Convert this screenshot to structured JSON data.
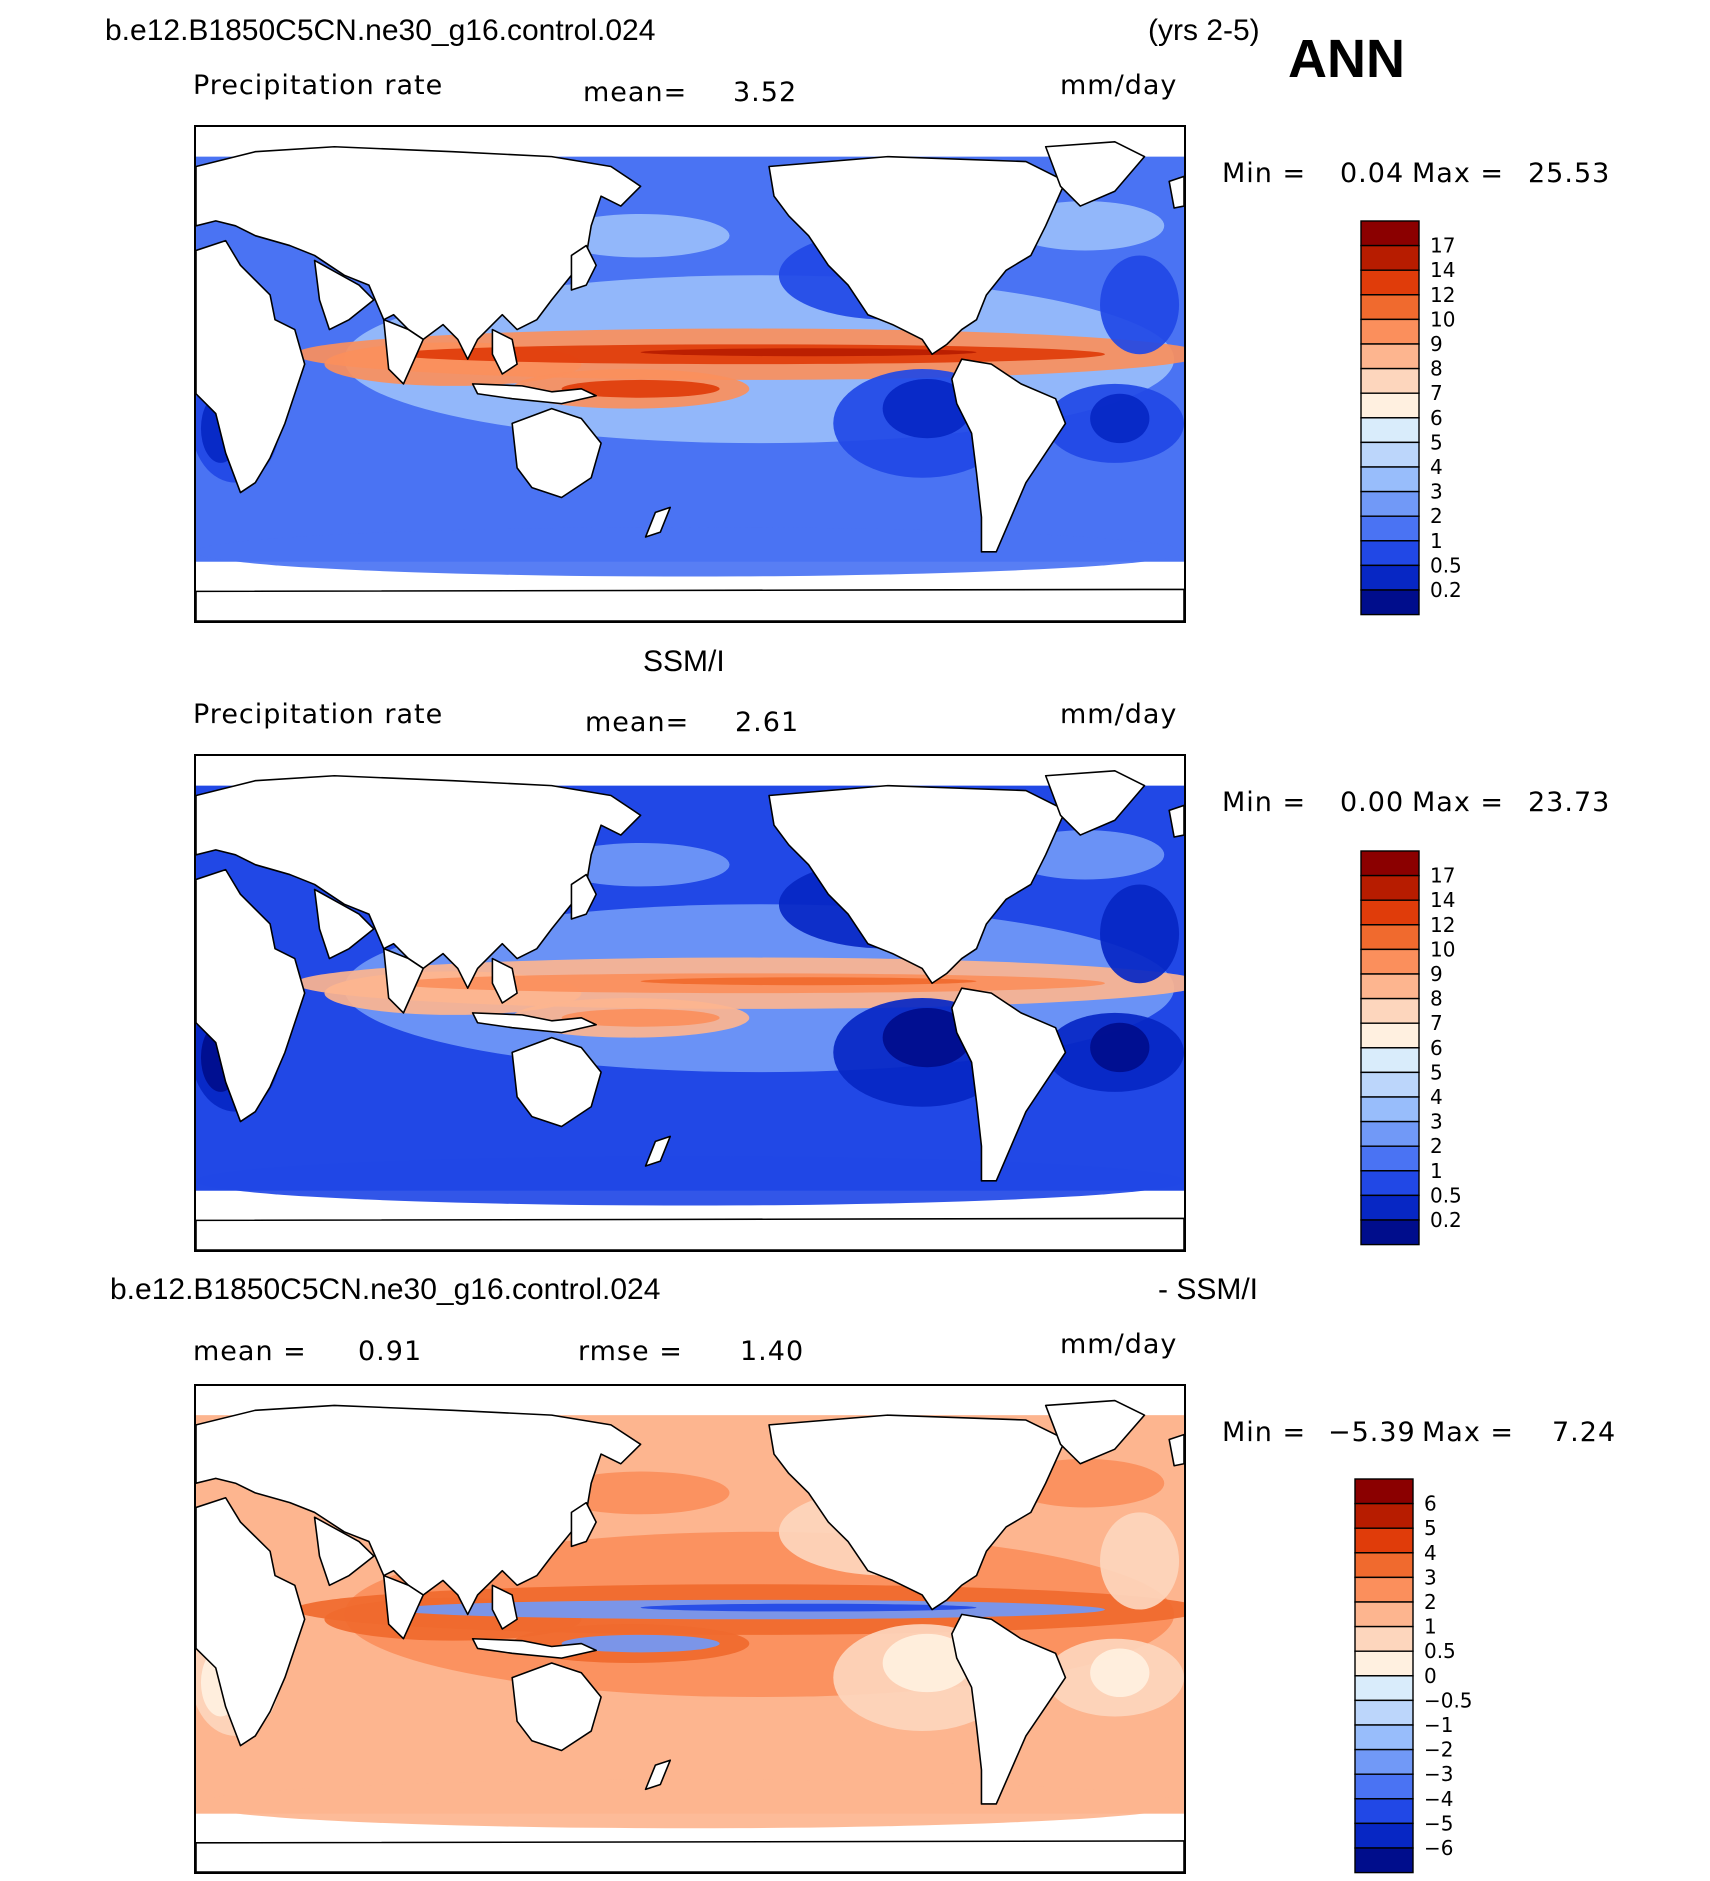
{
  "header": {
    "case_name": "b.e12.B1850C5CN.ne30_g16.control.024",
    "years": "(yrs 2-5)",
    "season": "ANN"
  },
  "panels": [
    {
      "id": "model",
      "subtitle": "",
      "variable": "Precipitation rate",
      "mean_label": "mean=",
      "mean_value": "3.52",
      "units": "mm/day",
      "min_label": "Min =",
      "min_value": "0.04",
      "max_label": "Max =",
      "max_value": "25.53",
      "colorbar": {
        "labels": [
          "17",
          "14",
          "12",
          "10",
          "9",
          "8",
          "7",
          "6",
          "5",
          "4",
          "3",
          "2",
          "1",
          "0.5",
          "0.2"
        ],
        "colors": [
          "#8b0000",
          "#b71c00",
          "#e03c0a",
          "#f06a2e",
          "#fb8f5c",
          "#fdb58f",
          "#fdd6bd",
          "#fff0e0",
          "#d9ecfb",
          "#bcd6fb",
          "#98bdfb",
          "#7199f7",
          "#4a73f3",
          "#2148e6",
          "#0727c4",
          "#000d8c"
        ]
      },
      "field_colors": {
        "ocean": "#4a73f3",
        "subtropic": "#2148e6",
        "desert": "#0727c4",
        "wet": "#98bdfb",
        "itcz": "#fb8f5c",
        "core": "#e03c0a",
        "peak": "#b71c00"
      }
    },
    {
      "id": "obs",
      "subtitle": "SSM/I",
      "variable": "Precipitation rate",
      "mean_label": "mean=",
      "mean_value": "2.61",
      "units": "mm/day",
      "min_label": "Min =",
      "min_value": "0.00",
      "max_label": "Max =",
      "max_value": "23.73",
      "colorbar": {
        "labels": [
          "17",
          "14",
          "12",
          "10",
          "9",
          "8",
          "7",
          "6",
          "5",
          "4",
          "3",
          "2",
          "1",
          "0.5",
          "0.2"
        ],
        "colors": [
          "#8b0000",
          "#b71c00",
          "#e03c0a",
          "#f06a2e",
          "#fb8f5c",
          "#fdb58f",
          "#fdd6bd",
          "#fff0e0",
          "#d9ecfb",
          "#bcd6fb",
          "#98bdfb",
          "#7199f7",
          "#4a73f3",
          "#2148e6",
          "#0727c4",
          "#000d8c"
        ]
      },
      "field_colors": {
        "ocean": "#2148e6",
        "subtropic": "#0727c4",
        "desert": "#000d8c",
        "wet": "#7199f7",
        "itcz": "#fdb58f",
        "core": "#fb8f5c",
        "peak": "#f06a2e"
      }
    },
    {
      "id": "diff",
      "case_name": "b.e12.B1850C5CN.ne30_g16.control.024",
      "subtitle": "- SSM/I",
      "mean_label": "mean =",
      "mean_value": "0.91",
      "rmse_label": "rmse =",
      "rmse_value": "1.40",
      "units": "mm/day",
      "min_label": "Min =",
      "min_value": "−5.39",
      "max_label": "Max =",
      "max_value": "7.24",
      "colorbar": {
        "labels": [
          "6",
          "5",
          "4",
          "3",
          "2",
          "1",
          "0.5",
          "0",
          "−0.5",
          "−1",
          "−2",
          "−3",
          "−4",
          "−5",
          "−6"
        ],
        "colors": [
          "#8b0000",
          "#b71c00",
          "#e03c0a",
          "#f06a2e",
          "#fb8f5c",
          "#fdb58f",
          "#fdd6bd",
          "#fff0e0",
          "#d9ecfb",
          "#bcd6fb",
          "#98bdfb",
          "#7199f7",
          "#4a73f3",
          "#2148e6",
          "#0727c4",
          "#000d8c"
        ]
      },
      "field_colors": {
        "ocean": "#fdb58f",
        "subtropic": "#fdd6bd",
        "desert": "#fff0e0",
        "wet": "#fb8f5c",
        "itcz": "#f06a2e",
        "core": "#7199f7",
        "peak": "#2148e6"
      }
    }
  ]
}
